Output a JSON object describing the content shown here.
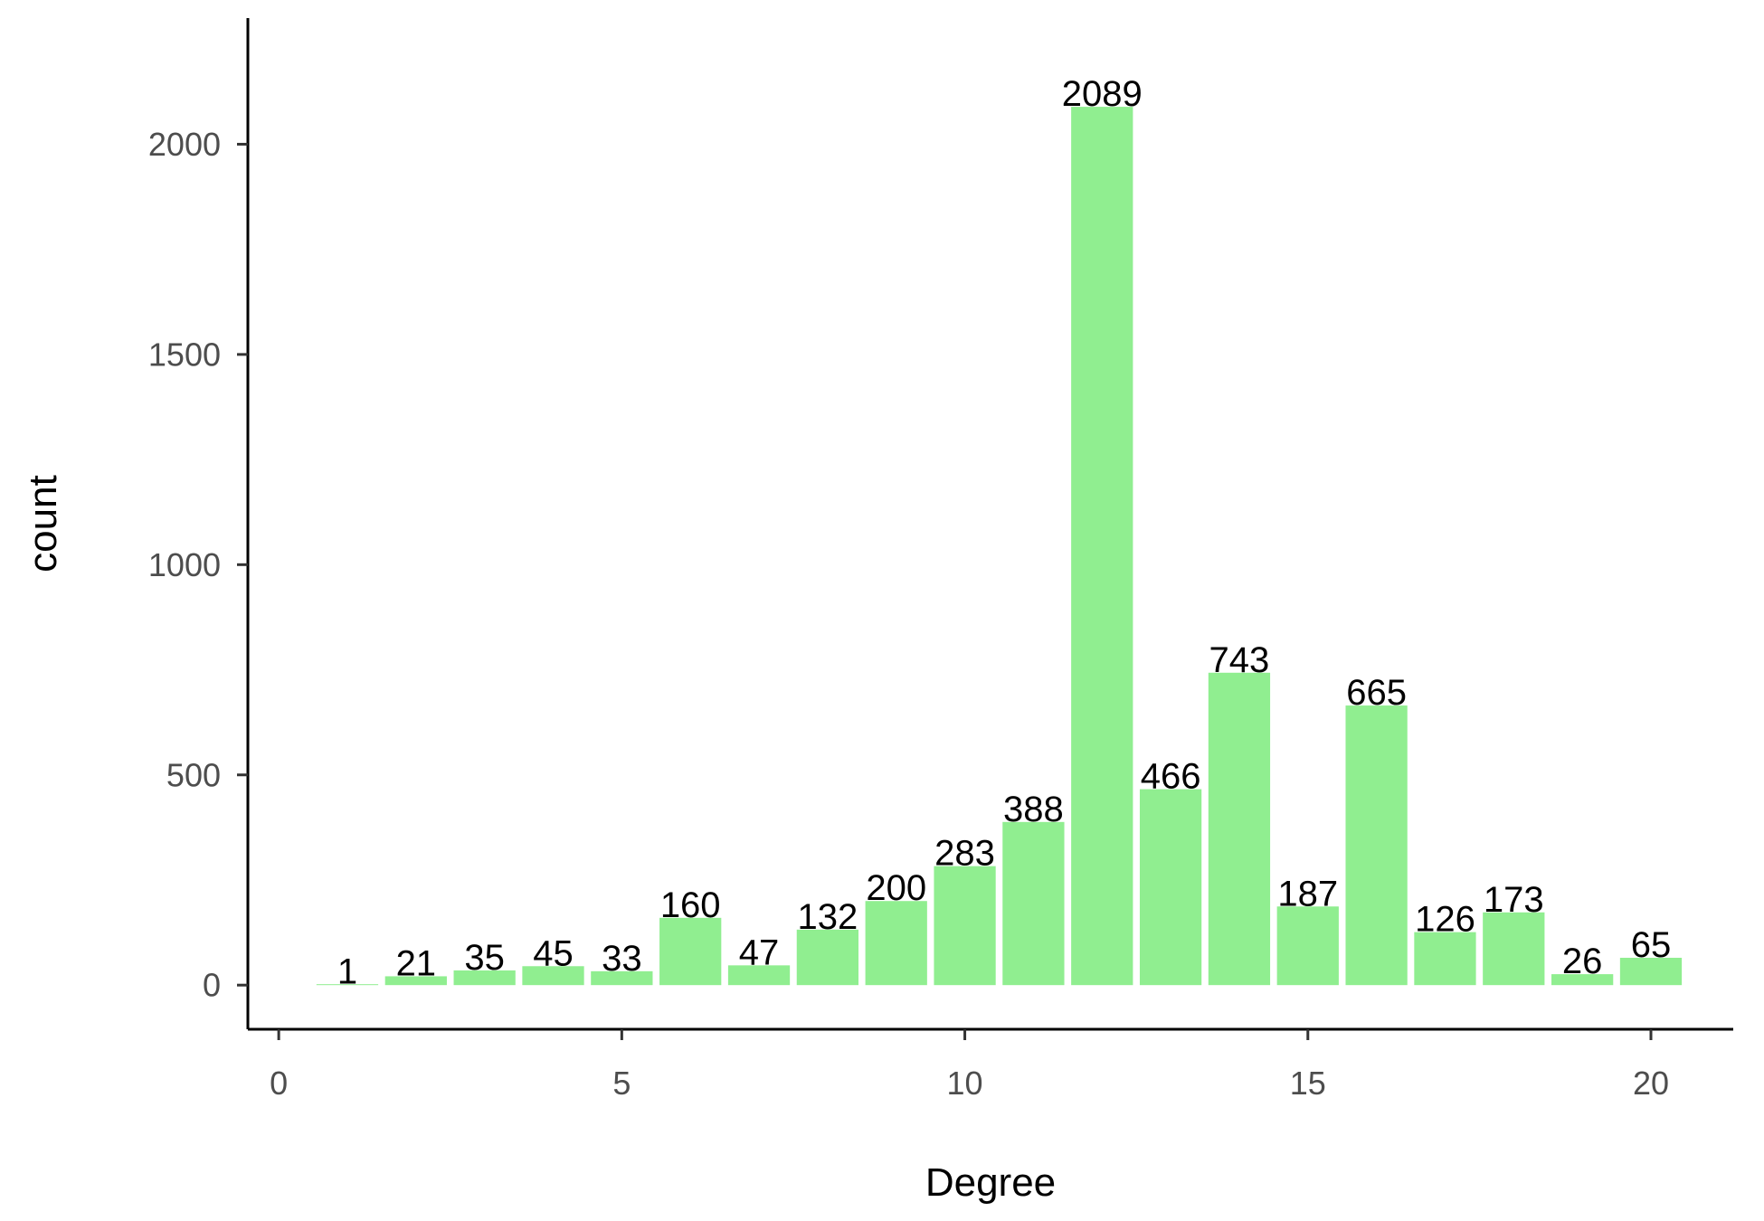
{
  "chart_data": {
    "type": "bar",
    "xlabel": "Degree",
    "ylabel": "count",
    "x": [
      1,
      2,
      3,
      4,
      5,
      6,
      7,
      8,
      9,
      10,
      11,
      12,
      13,
      14,
      15,
      16,
      17,
      18,
      19,
      20
    ],
    "values": [
      1,
      21,
      35,
      45,
      33,
      160,
      47,
      132,
      200,
      283,
      388,
      2089,
      466,
      743,
      187,
      665,
      126,
      173,
      26,
      65
    ],
    "xlim": [
      -0.45,
      21.2
    ],
    "ylim": [
      -105,
      2300
    ],
    "x_ticks": [
      0,
      5,
      10,
      15,
      20
    ],
    "y_ticks": [
      0,
      500,
      1000,
      1500,
      2000
    ],
    "bar_color": "#90ee90",
    "grid": false,
    "data_labels": true
  }
}
